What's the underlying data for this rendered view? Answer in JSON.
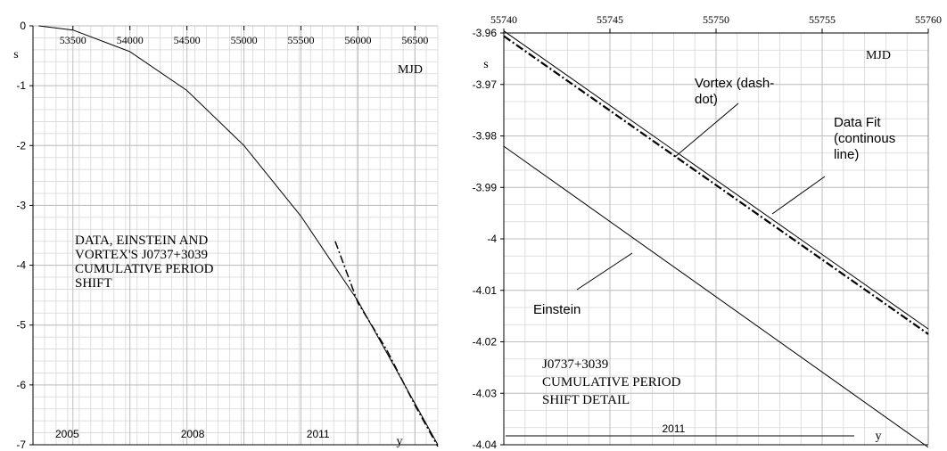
{
  "chart_data": [
    {
      "type": "line",
      "title": "",
      "ylabel": "s",
      "xlabel": "MJD",
      "secondary_xlabel": "y",
      "xlim": [
        53150,
        56700
      ],
      "ylim": [
        -7,
        0
      ],
      "x_ticks": [
        53500,
        54000,
        54500,
        55000,
        55500,
        56000,
        56500
      ],
      "y_ticks": [
        0,
        -1,
        -2,
        -3,
        -4,
        -5,
        -6,
        -7
      ],
      "year_ticks": [
        {
          "label": "2005",
          "x": 53450
        },
        {
          "label": "2008",
          "x": 54550
        },
        {
          "label": "2011",
          "x": 55650
        }
      ],
      "grid": true,
      "annotation": [
        "DATA, EINSTEIN AND",
        "VORTEX'S J0737+3039",
        "CUMULATIVE  PERIOD",
        "SHIFT"
      ],
      "series": [
        {
          "style": "solid",
          "x": [
            53200,
            53500,
            54000,
            54500,
            55000,
            55500,
            56000,
            56500,
            56700
          ],
          "y": [
            0.0,
            -0.07,
            -0.43,
            -1.08,
            -2.0,
            -3.18,
            -4.6,
            -6.31,
            -7.0
          ]
        },
        {
          "style": "dash-dot",
          "x": [
            55800,
            56000,
            56250,
            56500,
            56700
          ],
          "y": [
            -3.6,
            -4.63,
            -5.41,
            -6.34,
            -7.03
          ]
        }
      ]
    },
    {
      "type": "line",
      "title": "",
      "ylabel": "s",
      "xlabel": "MJD",
      "secondary_xlabel": "y",
      "xlim": [
        55740,
        55760
      ],
      "ylim": [
        -4.04,
        -3.96
      ],
      "x_ticks": [
        55740,
        55745,
        55750,
        55755,
        55760
      ],
      "y_ticks": [
        -3.96,
        -3.97,
        -3.98,
        -3.99,
        -4,
        -4.01,
        -4.02,
        -4.03,
        -4.04
      ],
      "year_ticks": [
        {
          "label": "2011",
          "x": 55748
        }
      ],
      "grid": true,
      "annotation": [
        "J0737+3039",
        "CUMULATIVE  PERIOD",
        "SHIFT DETAIL"
      ],
      "series": [
        {
          "name": "Data Fit (continous line)",
          "style": "solid",
          "x": [
            55740,
            55760
          ],
          "y": [
            -3.9596,
            -4.0175
          ]
        },
        {
          "name": "Vortex (dash-dot)",
          "style": "dash-dot",
          "x": [
            55740,
            55760
          ],
          "y": [
            -3.9606,
            -4.0185
          ]
        },
        {
          "name": "Einstein",
          "style": "solid",
          "x": [
            55740,
            55760
          ],
          "y": [
            -3.982,
            -4.0405
          ]
        }
      ],
      "labels": [
        {
          "lines": [
            "Vortex (dash-",
            "dot)"
          ]
        },
        {
          "lines": [
            "Data Fit",
            "(continous",
            "line)"
          ]
        },
        {
          "lines": [
            "Einstein"
          ]
        }
      ]
    }
  ]
}
